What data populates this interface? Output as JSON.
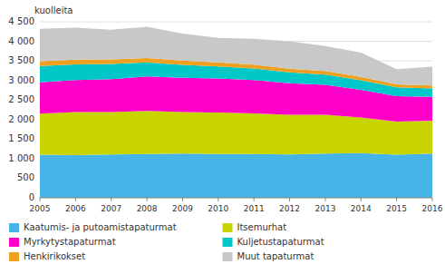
{
  "chart_data": {
    "type": "area",
    "stacked": true,
    "y_label": "kuolleita",
    "x": [
      2005,
      2006,
      2007,
      2008,
      2009,
      2010,
      2011,
      2012,
      2013,
      2014,
      2015,
      2016
    ],
    "xlim": [
      2005,
      2016
    ],
    "xticks": [
      2005,
      2006,
      2007,
      2008,
      2009,
      2010,
      2011,
      2012,
      2013,
      2014,
      2015,
      2016
    ],
    "series": [
      {
        "name": "Kaatumis- ja putoamistapaturmat",
        "color": "#46b4e6",
        "values": [
          1100,
          1090,
          1110,
          1120,
          1130,
          1120,
          1120,
          1110,
          1130,
          1140,
          1100,
          1130
        ]
      },
      {
        "name": "Itsemurhat",
        "color": "#c8d400",
        "values": [
          1050,
          1100,
          1080,
          1100,
          1060,
          1060,
          1040,
          1010,
          990,
          910,
          850,
          840
        ]
      },
      {
        "name": "Myrkytystapaturmat",
        "color": "#ff00c8",
        "values": [
          800,
          820,
          840,
          880,
          880,
          870,
          850,
          810,
          770,
          710,
          650,
          610
        ]
      },
      {
        "name": "Kuljetustapaturmat",
        "color": "#00c8c8",
        "values": [
          420,
          400,
          390,
          360,
          330,
          310,
          295,
          275,
          260,
          245,
          225,
          215
        ]
      },
      {
        "name": "Henkirikokset",
        "color": "#f0a020",
        "values": [
          120,
          120,
          115,
          115,
          110,
          100,
          100,
          95,
          90,
          85,
          75,
          75
        ]
      },
      {
        "name": "Muut tapaturmat",
        "color": "#c8c8c8",
        "values": [
          830,
          820,
          760,
          800,
          690,
          630,
          660,
          700,
          640,
          620,
          390,
          480
        ]
      }
    ],
    "ylim": [
      0,
      4500
    ],
    "yticks": [
      0,
      500,
      {
        "value": 1000,
        "label": "1 000"
      },
      {
        "value": 1500,
        "label": "1 500"
      },
      {
        "value": 2000,
        "label": "2 000"
      },
      {
        "value": 2500,
        "label": "2 500"
      },
      {
        "value": 3000,
        "label": "3 000"
      },
      {
        "value": 3500,
        "label": "3 500"
      },
      {
        "value": 4000,
        "label": "4 000"
      },
      {
        "value": 4500,
        "label": "4 500"
      }
    ],
    "grid": true,
    "legend": "bottom"
  }
}
